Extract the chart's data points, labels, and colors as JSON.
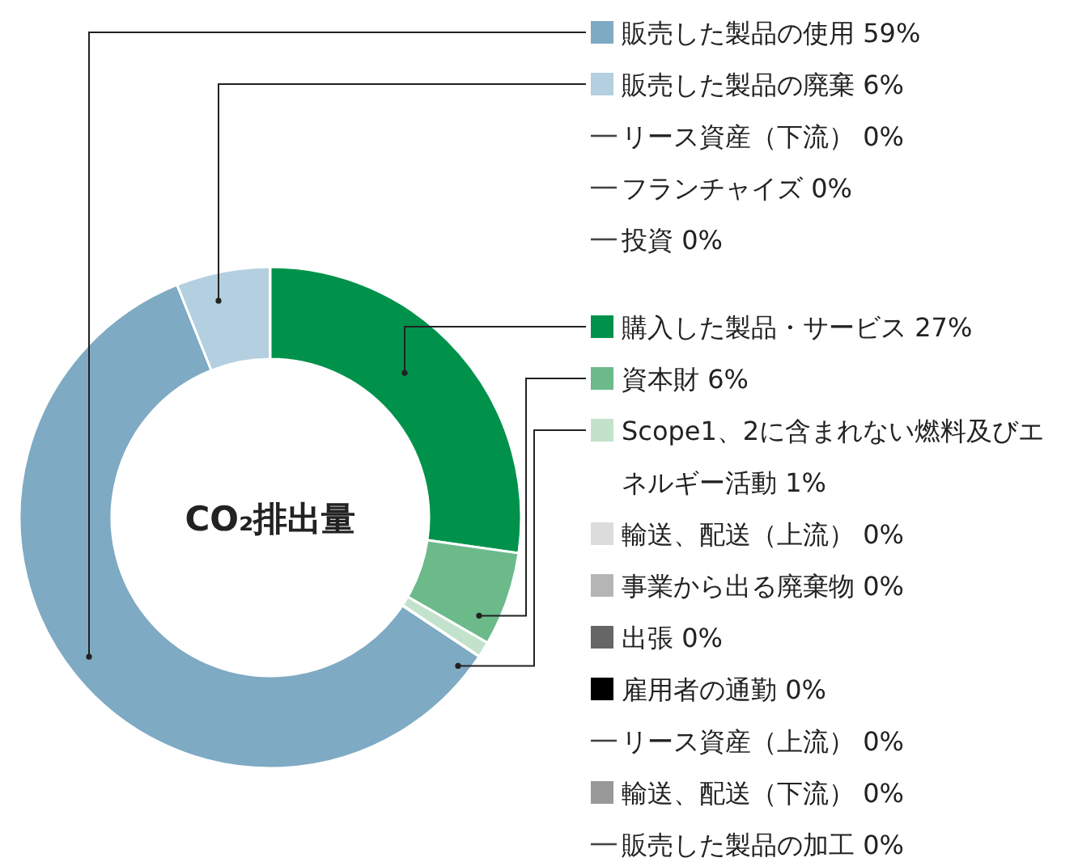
{
  "chart_data": {
    "type": "donut",
    "title": "CO₂排出量",
    "categories": [
      "販売した製品の使用 59%",
      "販売した製品の廃棄 6%",
      "リース資産（下流） 0%",
      "フランチャイズ 0%",
      "投資 0%",
      "購入した製品・サービス 27%",
      "資本財 6%",
      "Scope1、2に含まれない燃料及びエネルギー活動 1%",
      "輸送、配送（上流） 0%",
      "事業から出る廃棄物 0%",
      "出張 0%",
      "雇用者の通勤 0%",
      "リース資産（上流） 0%",
      "輸送、配送（下流） 0%",
      "販売した製品の加工 0%"
    ],
    "values": [
      59,
      6,
      0,
      0,
      0,
      27,
      6,
      1,
      0,
      0,
      0,
      0,
      0,
      0,
      0
    ],
    "colors": [
      "#7eaac3",
      "#b3cfe0",
      null,
      null,
      null,
      "#00924b",
      "#6cb98a",
      "#c3e2cc",
      "#dcdcdc",
      "#b5b5b5",
      "#666666",
      "#000000",
      null,
      "#999999",
      null
    ],
    "legend": "right"
  }
}
